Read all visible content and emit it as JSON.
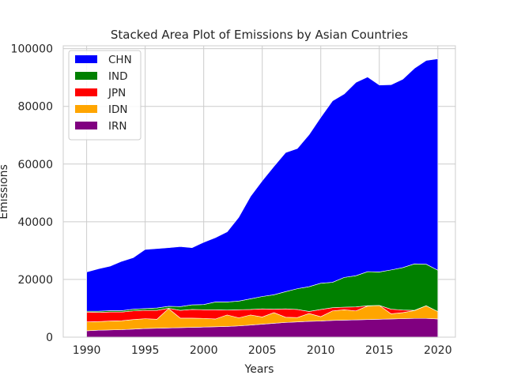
{
  "chart_data": {
    "type": "area",
    "stacked": true,
    "title": "Stacked Area Plot of Emissions by Asian Countries",
    "xlabel": "Years",
    "ylabel": "Emissions",
    "xlim": [
      1988,
      2021.5
    ],
    "ylim": [
      0,
      101000
    ],
    "xticks": [
      1990,
      1995,
      2000,
      2005,
      2010,
      2015,
      2020
    ],
    "yticks": [
      0,
      20000,
      40000,
      60000,
      80000,
      100000
    ],
    "xtick_labels": [
      "1990",
      "1995",
      "2000",
      "2005",
      "2010",
      "2015",
      "2020"
    ],
    "ytick_labels": [
      "0",
      "20000",
      "40000",
      "60000",
      "80000",
      "100000"
    ],
    "grid": true,
    "legend_position": "upper-left",
    "years": [
      1990,
      1991,
      1992,
      1993,
      1994,
      1995,
      1996,
      1997,
      1998,
      1999,
      2000,
      2001,
      2002,
      2003,
      2004,
      2005,
      2006,
      2007,
      2008,
      2009,
      2010,
      2011,
      2012,
      2013,
      2014,
      2015,
      2016,
      2017,
      2018,
      2019,
      2020
    ],
    "series": [
      {
        "name": "IRN",
        "color": "#800080",
        "values": [
          2200,
          2400,
          2500,
          2600,
          2800,
          3000,
          3100,
          3200,
          3300,
          3400,
          3500,
          3600,
          3700,
          3900,
          4200,
          4500,
          4800,
          5100,
          5300,
          5500,
          5600,
          5800,
          5900,
          6000,
          6100,
          6200,
          6300,
          6400,
          6500,
          6500,
          6300
        ]
      },
      {
        "name": "IDN",
        "color": "#FFA500",
        "values": [
          3100,
          3000,
          3100,
          3100,
          3300,
          3400,
          3100,
          6700,
          3300,
          3200,
          3000,
          2700,
          4000,
          2800,
          3500,
          2500,
          3700,
          1800,
          1500,
          2700,
          1500,
          3300,
          3600,
          3100,
          4700,
          4800,
          1800,
          2100,
          2700,
          4400,
          2600
        ]
      },
      {
        "name": "JPN",
        "color": "#FF0000",
        "values": [
          3400,
          3200,
          3100,
          3000,
          3000,
          2900,
          3100,
          100,
          2700,
          3000,
          3000,
          3200,
          1700,
          2800,
          1900,
          2800,
          1200,
          2900,
          2800,
          700,
          2500,
          1100,
          900,
          1400,
          100,
          0,
          1600,
          900,
          100,
          0,
          0
        ]
      },
      {
        "name": "IND",
        "color": "#008000",
        "values": [
          300,
          400,
          500,
          500,
          600,
          600,
          800,
          700,
          1300,
          1600,
          1800,
          2700,
          2800,
          3000,
          3700,
          4300,
          5000,
          6000,
          7200,
          8600,
          9100,
          8800,
          10300,
          10800,
          11800,
          11600,
          13600,
          14700,
          16100,
          14400,
          14300
        ]
      },
      {
        "name": "CHN",
        "color": "#0000FF",
        "values": [
          13600,
          14700,
          15400,
          17100,
          17900,
          20500,
          20600,
          20300,
          20800,
          19800,
          21600,
          22300,
          24300,
          29100,
          35500,
          40100,
          44500,
          48200,
          48600,
          52700,
          57500,
          62900,
          63600,
          67000,
          67500,
          64800,
          64200,
          65300,
          67800,
          70600,
          73300
        ]
      }
    ]
  }
}
